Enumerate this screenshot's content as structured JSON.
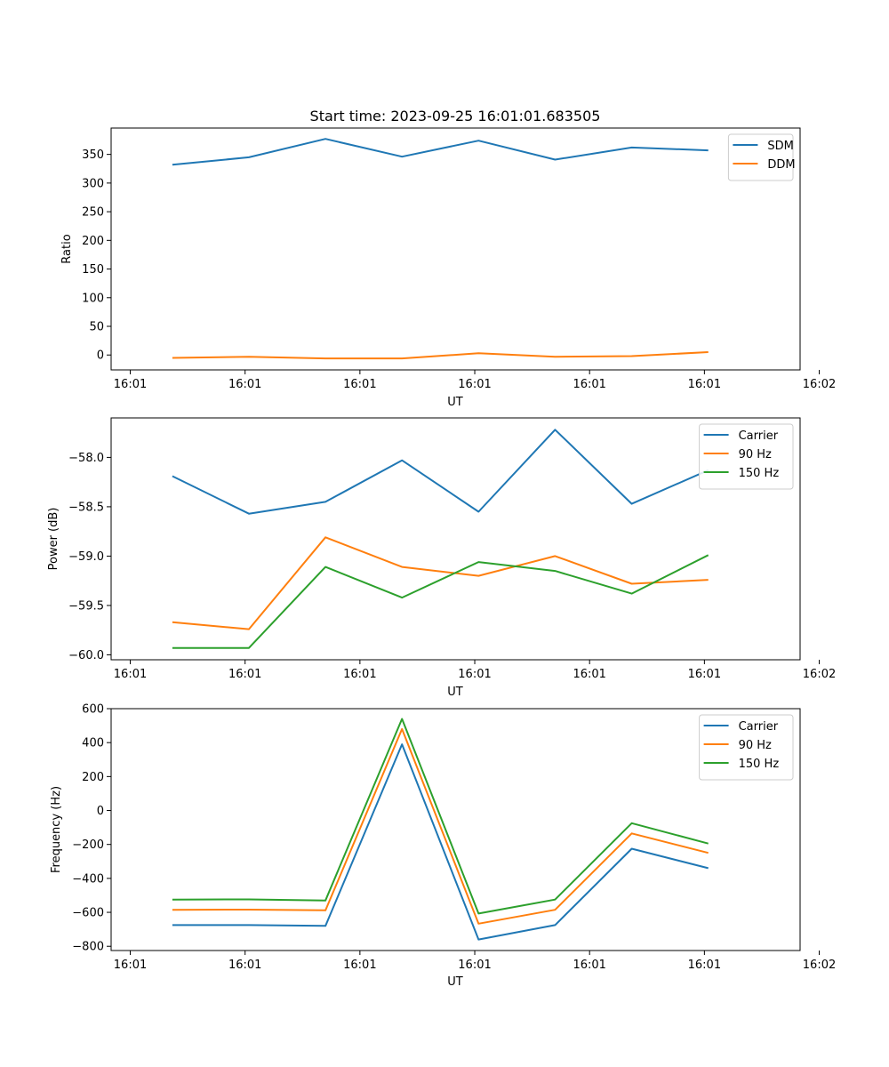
{
  "chart_data": [
    {
      "type": "line",
      "title": "Start time: 2023-09-25 16:01:01.683505",
      "xlabel": "UT",
      "ylabel": "Ratio",
      "x": [
        1,
        2,
        3,
        4,
        5,
        6,
        7,
        8
      ],
      "xlim": [
        0.2,
        9.2
      ],
      "xticks": [
        0.45,
        1.95,
        3.45,
        4.95,
        6.45,
        7.95,
        9.45
      ],
      "xtick_labels": [
        "16:01",
        "16:01",
        "16:01",
        "16:01",
        "16:01",
        "16:01",
        "16:02"
      ],
      "ylim": [
        -26,
        396
      ],
      "yticks": [
        0,
        50,
        100,
        150,
        200,
        250,
        300,
        350
      ],
      "ytick_labels": [
        "0",
        "50",
        "100",
        "150",
        "200",
        "250",
        "300",
        "350"
      ],
      "legend_position": "top-right",
      "series": [
        {
          "name": "SDM",
          "color": "#1f77b4",
          "values": [
            332,
            345,
            377,
            346,
            374,
            341,
            362,
            357
          ]
        },
        {
          "name": "DDM",
          "color": "#ff7f0e",
          "values": [
            -5,
            -3,
            -6,
            -6,
            3,
            -3,
            -2,
            5
          ]
        }
      ]
    },
    {
      "type": "line",
      "title": "",
      "xlabel": "UT",
      "ylabel": "Power (dB)",
      "x": [
        1,
        2,
        3,
        4,
        5,
        6,
        7,
        8
      ],
      "xlim": [
        0.2,
        9.2
      ],
      "xticks": [
        0.45,
        1.95,
        3.45,
        4.95,
        6.45,
        7.95,
        9.45
      ],
      "xtick_labels": [
        "16:01",
        "16:01",
        "16:01",
        "16:01",
        "16:01",
        "16:01",
        "16:02"
      ],
      "ylim": [
        -60.05,
        -57.6
      ],
      "yticks": [
        -60.0,
        -59.5,
        -59.0,
        -58.5,
        -58.0
      ],
      "ytick_labels": [
        "−60.0",
        "−59.5",
        "−59.0",
        "−58.5",
        "−58.0"
      ],
      "legend_position": "top-right",
      "series": [
        {
          "name": "Carrier",
          "color": "#1f77b4",
          "values": [
            -58.19,
            -58.57,
            -58.45,
            -58.03,
            -58.55,
            -57.72,
            -58.47,
            -58.13
          ]
        },
        {
          "name": "90 Hz",
          "color": "#ff7f0e",
          "values": [
            -59.67,
            -59.74,
            -58.81,
            -59.11,
            -59.2,
            -59.0,
            -59.28,
            -59.24
          ]
        },
        {
          "name": "150 Hz",
          "color": "#2ca02c",
          "values": [
            -59.93,
            -59.93,
            -59.11,
            -59.42,
            -59.06,
            -59.15,
            -59.38,
            -58.99
          ]
        }
      ]
    },
    {
      "type": "line",
      "title": "",
      "xlabel": "UT",
      "ylabel": "Frequency (Hz)",
      "x": [
        1,
        2,
        3,
        4,
        5,
        6,
        7,
        8
      ],
      "xlim": [
        0.2,
        9.2
      ],
      "xticks": [
        0.45,
        1.95,
        3.45,
        4.95,
        6.45,
        7.95,
        9.45
      ],
      "xtick_labels": [
        "16:01",
        "16:01",
        "16:01",
        "16:01",
        "16:01",
        "16:01",
        "16:02"
      ],
      "ylim": [
        -825,
        600
      ],
      "yticks": [
        -800,
        -600,
        -400,
        -200,
        0,
        200,
        400,
        600
      ],
      "ytick_labels": [
        "−800",
        "−600",
        "−400",
        "−200",
        "0",
        "200",
        "400",
        "600"
      ],
      "legend_position": "top-right",
      "series": [
        {
          "name": "Carrier",
          "color": "#1f77b4",
          "values": [
            -675,
            -675,
            -680,
            390,
            -760,
            -675,
            -225,
            -340
          ]
        },
        {
          "name": "90 Hz",
          "color": "#ff7f0e",
          "values": [
            -585,
            -584,
            -588,
            480,
            -667,
            -585,
            -135,
            -250
          ]
        },
        {
          "name": "150 Hz",
          "color": "#2ca02c",
          "values": [
            -525,
            -524,
            -530,
            540,
            -607,
            -525,
            -75,
            -195
          ]
        }
      ]
    }
  ]
}
